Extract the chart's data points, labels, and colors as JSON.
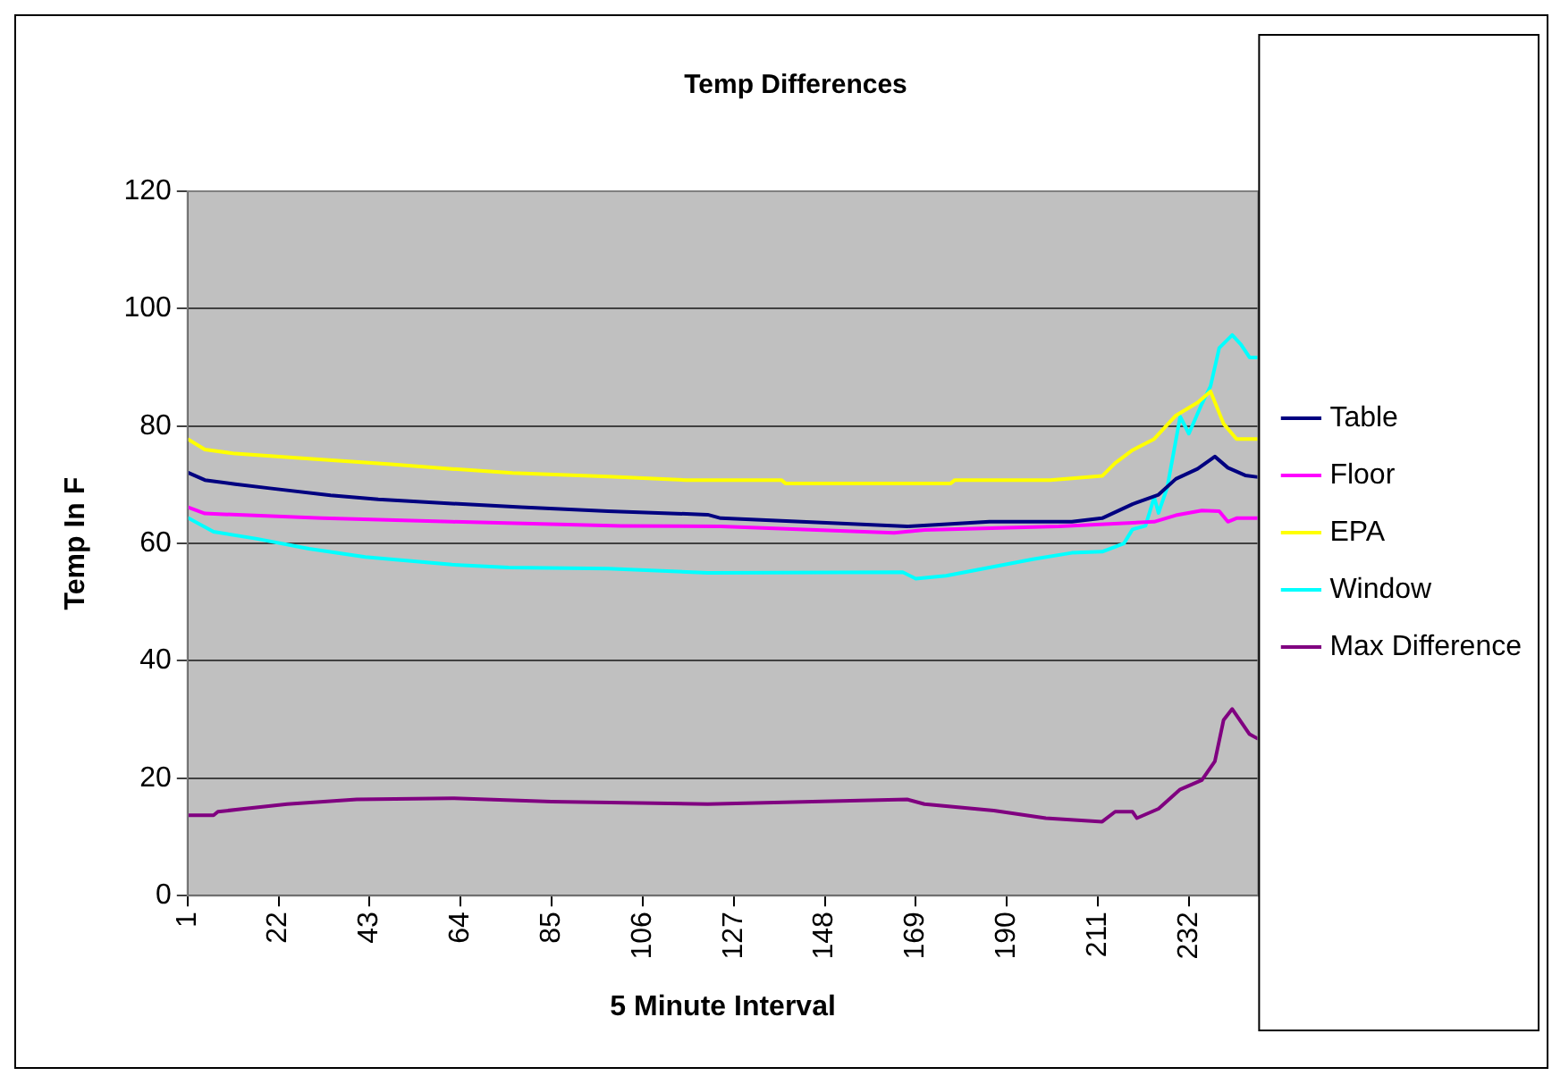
{
  "chart_data": {
    "type": "line",
    "title": "Temp Differences",
    "xlabel": "5 Minute Interval",
    "ylabel": "Temp In F",
    "xlim": [
      1,
      248
    ],
    "xticks": [
      1,
      22,
      43,
      64,
      85,
      106,
      127,
      148,
      169,
      190,
      211,
      232
    ],
    "ylim": [
      0,
      120
    ],
    "yticks": [
      0,
      20,
      40,
      60,
      80,
      100,
      120
    ],
    "grid": "y",
    "legend": "right",
    "series": [
      {
        "name": "Table",
        "color": "#000080",
        "x": [
          1,
          5,
          12,
          20,
          34,
          45,
          62,
          78,
          98,
          121,
          124,
          167,
          186,
          205,
          212,
          219,
          225,
          229,
          234,
          238,
          241,
          245,
          248
        ],
        "values": [
          72.1,
          70.8,
          70.1,
          69.4,
          68.2,
          67.5,
          66.8,
          66.2,
          65.5,
          64.9,
          64.3,
          62.9,
          63.7,
          63.7,
          64.3,
          66.7,
          68.3,
          71,
          72.7,
          74.8,
          72.9,
          71.6,
          71.3
        ]
      },
      {
        "name": "Floor",
        "color": "#ff00ff",
        "x": [
          1,
          5,
          32,
          62,
          101,
          124,
          164,
          171,
          202,
          224,
          229,
          235,
          239,
          241,
          243,
          248
        ],
        "values": [
          66.2,
          65.1,
          64.3,
          63.7,
          63,
          62.9,
          61.8,
          62.3,
          62.9,
          63.7,
          64.8,
          65.6,
          65.5,
          63.7,
          64.3,
          64.3
        ]
      },
      {
        "name": "EPA",
        "color": "#ffff00",
        "x": [
          1,
          5,
          12,
          26,
          48,
          62,
          76,
          98,
          116,
          138,
          139,
          177,
          178,
          200,
          212,
          215,
          219,
          224,
          229,
          234,
          237,
          240,
          243,
          248
        ],
        "values": [
          77.8,
          76,
          75.3,
          74.6,
          73.5,
          72.7,
          72,
          71.4,
          70.8,
          70.8,
          70.2,
          70.2,
          70.8,
          70.8,
          71.5,
          73.7,
          75.9,
          77.8,
          81.8,
          84,
          85.9,
          80.4,
          77.8,
          77.8
        ]
      },
      {
        "name": "Window",
        "color": "#00ffff",
        "x": [
          1,
          7,
          17,
          29,
          42,
          62,
          75,
          98,
          121,
          166,
          169,
          176,
          186,
          196,
          205,
          212,
          217,
          219,
          222,
          224,
          225,
          227,
          230,
          232,
          235,
          237,
          239,
          242,
          244,
          246,
          248
        ],
        "values": [
          64.4,
          62,
          60.8,
          59.1,
          57.7,
          56.4,
          55.9,
          55.7,
          55,
          55.1,
          54,
          54.5,
          55.9,
          57.3,
          58.4,
          58.6,
          60,
          62.4,
          63,
          67.9,
          65.2,
          69.5,
          81.6,
          78.7,
          83.8,
          86.8,
          93.3,
          95.5,
          93.9,
          91.7,
          91.7
        ]
      },
      {
        "name": "Max Difference",
        "color": "#800080",
        "x": [
          1,
          7,
          8,
          14,
          24,
          40,
          62,
          85,
          121,
          167,
          171,
          187,
          199,
          212,
          215,
          219,
          220,
          225,
          230,
          235,
          238,
          240,
          242,
          246,
          248
        ],
        "values": [
          13.7,
          13.7,
          14.3,
          14.8,
          15.6,
          16.4,
          16.6,
          16,
          15.6,
          16.4,
          15.6,
          14.5,
          13.2,
          12.6,
          14.3,
          14.3,
          13.2,
          14.8,
          18.1,
          19.7,
          22.9,
          29.9,
          31.8,
          27.5,
          26.7
        ]
      }
    ]
  }
}
